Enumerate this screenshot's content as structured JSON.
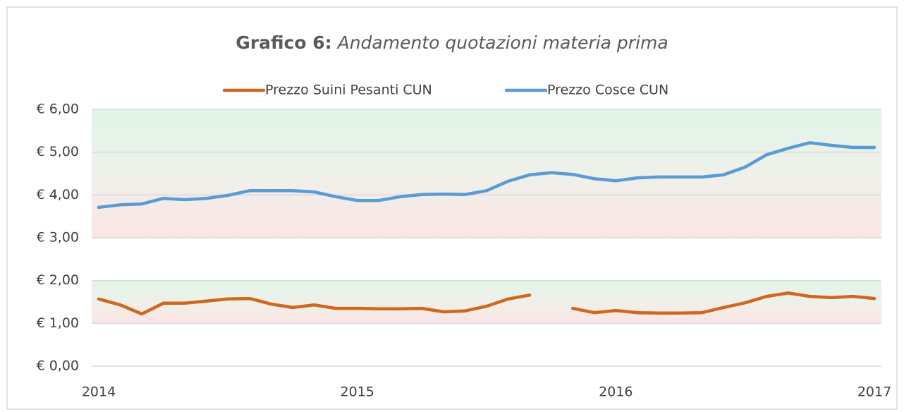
{
  "chart_data": {
    "type": "line",
    "title_parts": [
      "Grafico 6:",
      "Andamento quotazioni materia prima"
    ],
    "categories": [
      "2014",
      null,
      null,
      null,
      null,
      null,
      null,
      null,
      null,
      null,
      null,
      null,
      "2015",
      null,
      null,
      null,
      null,
      null,
      null,
      null,
      null,
      null,
      null,
      null,
      "2016",
      null,
      null,
      null,
      null,
      null,
      null,
      null,
      null,
      null,
      null,
      null,
      "2017"
    ],
    "series": [
      {
        "name": "Prezzo Suini Pesanti CUN",
        "color": "#d0671f",
        "values": [
          1.57,
          1.43,
          1.22,
          1.47,
          1.47,
          1.52,
          1.57,
          1.58,
          1.45,
          1.37,
          1.43,
          1.35,
          1.35,
          1.34,
          1.34,
          1.35,
          1.27,
          1.29,
          1.4,
          1.57,
          1.66,
          null,
          1.35,
          1.25,
          1.3,
          1.25,
          1.24,
          1.24,
          1.25,
          1.37,
          1.48,
          1.63,
          1.71,
          1.63,
          1.6,
          1.63,
          1.58
        ]
      },
      {
        "name": "Prezzo Cosce CUN",
        "color": "#5b9bd5",
        "values": [
          3.71,
          3.77,
          3.79,
          3.92,
          3.89,
          3.92,
          3.99,
          4.1,
          4.1,
          4.1,
          4.07,
          3.96,
          3.87,
          3.87,
          3.96,
          4.01,
          4.02,
          4.01,
          4.1,
          4.32,
          4.47,
          4.52,
          4.48,
          4.38,
          4.33,
          4.4,
          4.42,
          4.42,
          4.42,
          4.47,
          4.65,
          4.94,
          5.09,
          5.22,
          5.16,
          5.11,
          5.11
        ]
      }
    ],
    "bands": [
      {
        "from": 3,
        "to": 6
      },
      {
        "from": 1,
        "to": 2
      }
    ],
    "ylim": [
      0,
      6
    ],
    "yticks": [
      {
        "value": 0,
        "label": "€ 0,00"
      },
      {
        "value": 1,
        "label": "€ 1,00"
      },
      {
        "value": 2,
        "label": "€ 2,00"
      },
      {
        "value": 3,
        "label": "€ 3,00"
      },
      {
        "value": 4,
        "label": "€ 4,00"
      },
      {
        "value": 5,
        "label": "€ 5,00"
      },
      {
        "value": 6,
        "label": "€ 6,00"
      }
    ],
    "grid": true,
    "legend": "top"
  }
}
